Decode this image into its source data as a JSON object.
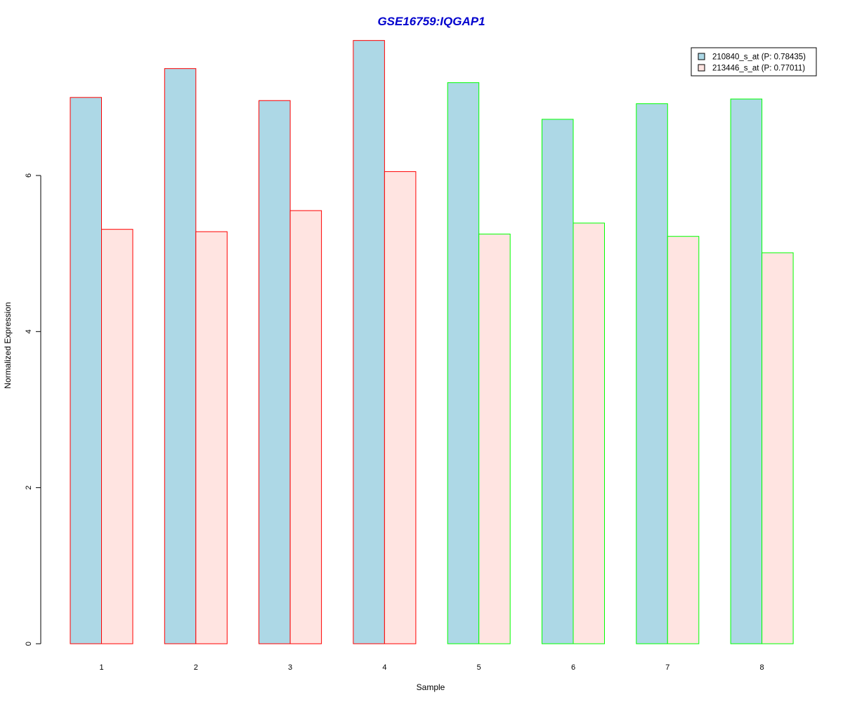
{
  "chart_data": {
    "type": "bar",
    "title": "GSE16759:IQGAP1",
    "xlabel": "Sample",
    "ylabel": "Normalized Expression",
    "categories": [
      "1",
      "2",
      "3",
      "4",
      "5",
      "6",
      "7",
      "8"
    ],
    "ylim": [
      0,
      7.8
    ],
    "yticks": [
      0,
      2,
      4,
      6
    ],
    "series": [
      {
        "name": "210840_s_at (P: 0.78435)",
        "fill": "#add8e6",
        "values": [
          7.0,
          7.37,
          6.96,
          7.73,
          7.19,
          6.72,
          6.92,
          6.98
        ]
      },
      {
        "name": "213446_s_at (P: 0.77011)",
        "fill": "#ffe4e1",
        "values": [
          5.31,
          5.28,
          5.55,
          6.05,
          5.25,
          5.39,
          5.22,
          5.01
        ]
      }
    ],
    "group_border_colors": [
      "#ff0000",
      "#ff0000",
      "#ff0000",
      "#ff0000",
      "#00ff00",
      "#00ff00",
      "#00ff00",
      "#00ff00"
    ],
    "title_color": "#0000cd",
    "legend_position": "top-right",
    "grid": false
  }
}
